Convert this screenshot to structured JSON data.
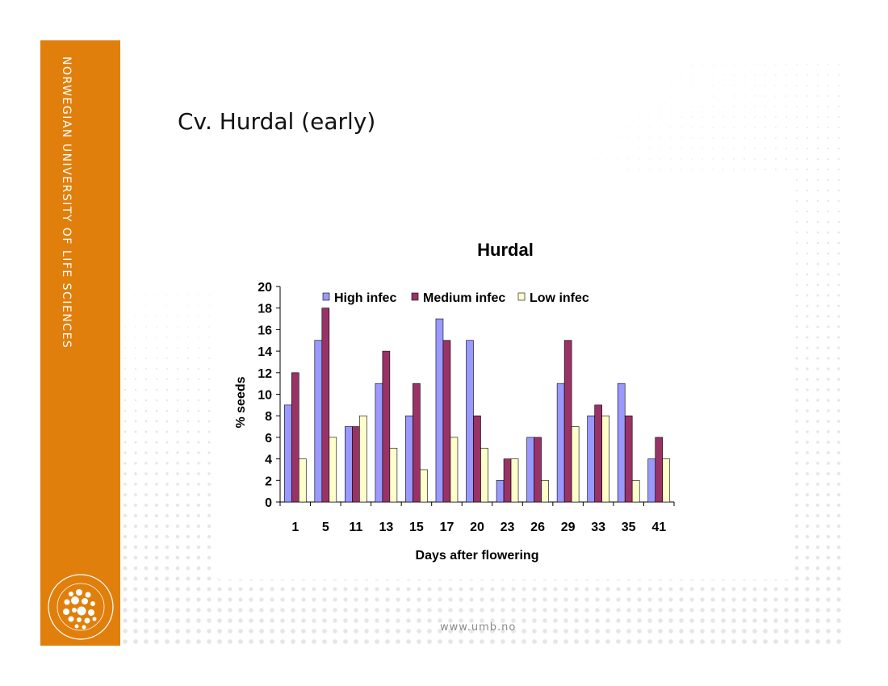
{
  "sidebar": {
    "text": "NORWEGIAN UNIVERSITY OF LIFE SCIENCES",
    "color": "#e07f0c",
    "logo_text": "NORWEGIAN UNIVERSITY OF LIFE SCIENCES"
  },
  "slide": {
    "title": "Cv. Hurdal (early)"
  },
  "footer": {
    "url": "www.umb.no"
  },
  "chart_data": {
    "type": "bar",
    "title": "Hurdal",
    "xlabel": "Days after flowering",
    "ylabel": "% seeds",
    "ylim": [
      0,
      20
    ],
    "yticks": [
      0,
      2,
      4,
      6,
      8,
      10,
      12,
      14,
      16,
      18,
      20
    ],
    "categories": [
      "1",
      "5",
      "11",
      "13",
      "15",
      "17",
      "20",
      "23",
      "26",
      "29",
      "33",
      "35",
      "41"
    ],
    "series": [
      {
        "name": "High infec",
        "color": "#9999ff",
        "values": [
          9,
          15,
          7,
          11,
          8,
          17,
          15,
          2,
          6,
          11,
          8,
          11,
          4
        ]
      },
      {
        "name": "Medium infec",
        "color": "#993366",
        "values": [
          12,
          18,
          7,
          14,
          11,
          15,
          8,
          4,
          6,
          15,
          9,
          8,
          6
        ]
      },
      {
        "name": "Low infec",
        "color": "#ffffcc",
        "values": [
          4,
          6,
          8,
          5,
          3,
          6,
          5,
          4,
          2,
          7,
          8,
          2,
          4
        ]
      }
    ],
    "legend_position": "top",
    "grid": false
  }
}
